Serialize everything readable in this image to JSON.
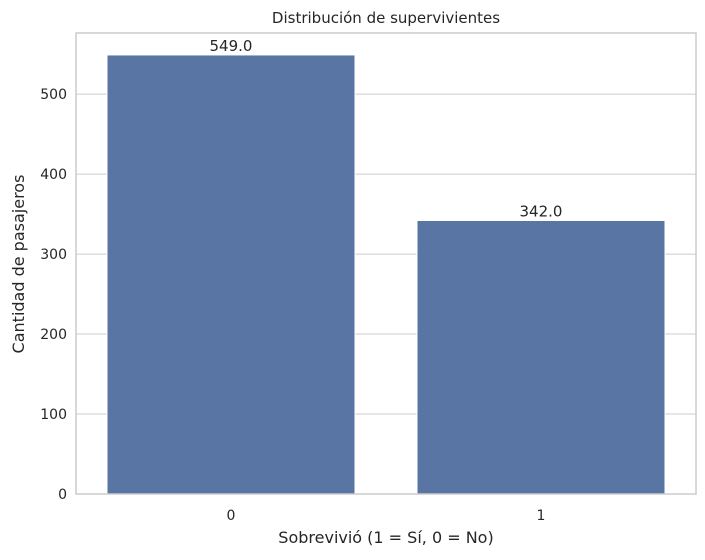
{
  "chart_data": {
    "type": "bar",
    "title": "Distribución de supervivientes",
    "xlabel": "Sobrevivió (1 = Sí, 0 = No)",
    "ylabel": "Cantidad de pasajeros",
    "categories": [
      "0",
      "1"
    ],
    "values": [
      549,
      342
    ],
    "data_labels": [
      "549.0",
      "342.0"
    ],
    "ylim": [
      0,
      576.45
    ],
    "yticks": [
      0,
      100,
      200,
      300,
      400,
      500
    ],
    "ytick_labels": [
      "0",
      "100",
      "200",
      "300",
      "400",
      "500"
    ],
    "grid": "horizontal",
    "colors": {
      "bar": "#5875a4",
      "grid": "#cccccc",
      "axes": "#cccccc",
      "text": "#262626"
    }
  }
}
